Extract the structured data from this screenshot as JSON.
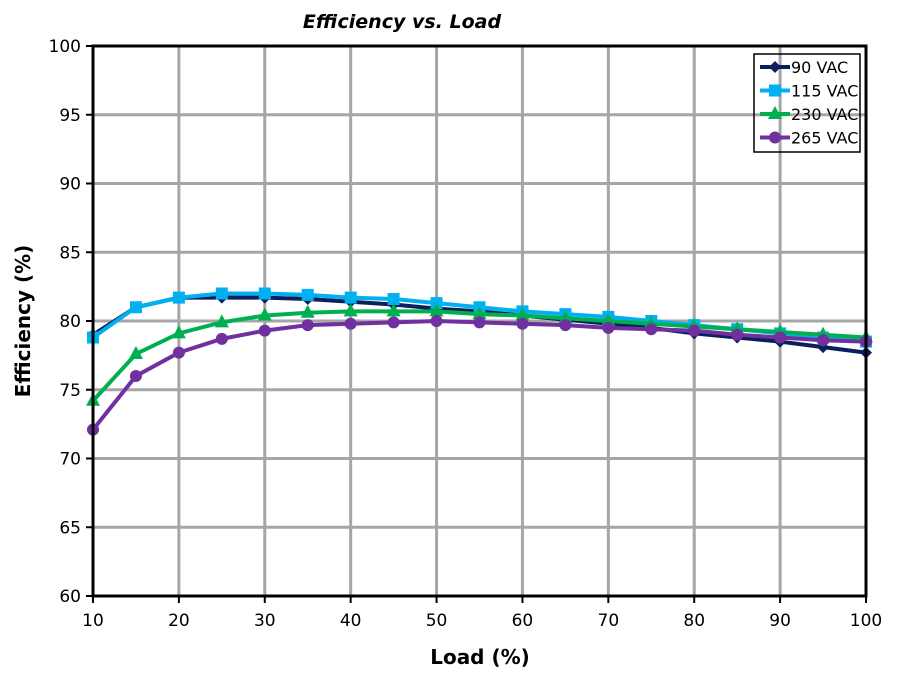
{
  "chart_data": {
    "type": "line",
    "title": "Efficiency vs. Load",
    "xlabel": "Load (%)",
    "ylabel": "Efficiency (%)",
    "xlim": [
      10,
      100
    ],
    "ylim": [
      60,
      100
    ],
    "xticks": [
      10,
      20,
      30,
      40,
      50,
      60,
      70,
      80,
      90,
      100
    ],
    "yticks": [
      60,
      65,
      70,
      75,
      80,
      85,
      90,
      95,
      100
    ],
    "grid": true,
    "legend": "top-right",
    "x": [
      10,
      15,
      20,
      25,
      30,
      35,
      40,
      45,
      50,
      55,
      60,
      65,
      70,
      75,
      80,
      85,
      90,
      95,
      100
    ],
    "series": [
      {
        "name": "90 VAC",
        "color": "#0a1f5c",
        "marker": "diamond",
        "values": [
          79.0,
          81.0,
          81.7,
          81.7,
          81.7,
          81.6,
          81.4,
          81.2,
          80.9,
          80.7,
          80.4,
          80.1,
          79.8,
          79.5,
          79.1,
          78.8,
          78.5,
          78.1,
          77.7
        ]
      },
      {
        "name": "115 VAC",
        "color": "#00b0f0",
        "marker": "square",
        "values": [
          78.8,
          81.0,
          81.7,
          82.0,
          82.0,
          81.9,
          81.7,
          81.6,
          81.3,
          81.0,
          80.7,
          80.5,
          80.3,
          80.0,
          79.7,
          79.4,
          79.1,
          78.8,
          78.5
        ]
      },
      {
        "name": "230 VAC",
        "color": "#00b050",
        "marker": "triangle",
        "values": [
          74.2,
          77.6,
          79.1,
          79.9,
          80.4,
          80.6,
          80.7,
          80.7,
          80.7,
          80.5,
          80.4,
          80.2,
          80.0,
          79.8,
          79.6,
          79.4,
          79.2,
          79.0,
          78.8
        ]
      },
      {
        "name": "265 VAC",
        "color": "#7030a0",
        "marker": "circle",
        "values": [
          72.1,
          76.0,
          77.7,
          78.7,
          79.3,
          79.7,
          79.8,
          79.9,
          80.0,
          79.9,
          79.8,
          79.7,
          79.5,
          79.4,
          79.3,
          79.0,
          78.8,
          78.6,
          78.5
        ]
      }
    ]
  }
}
